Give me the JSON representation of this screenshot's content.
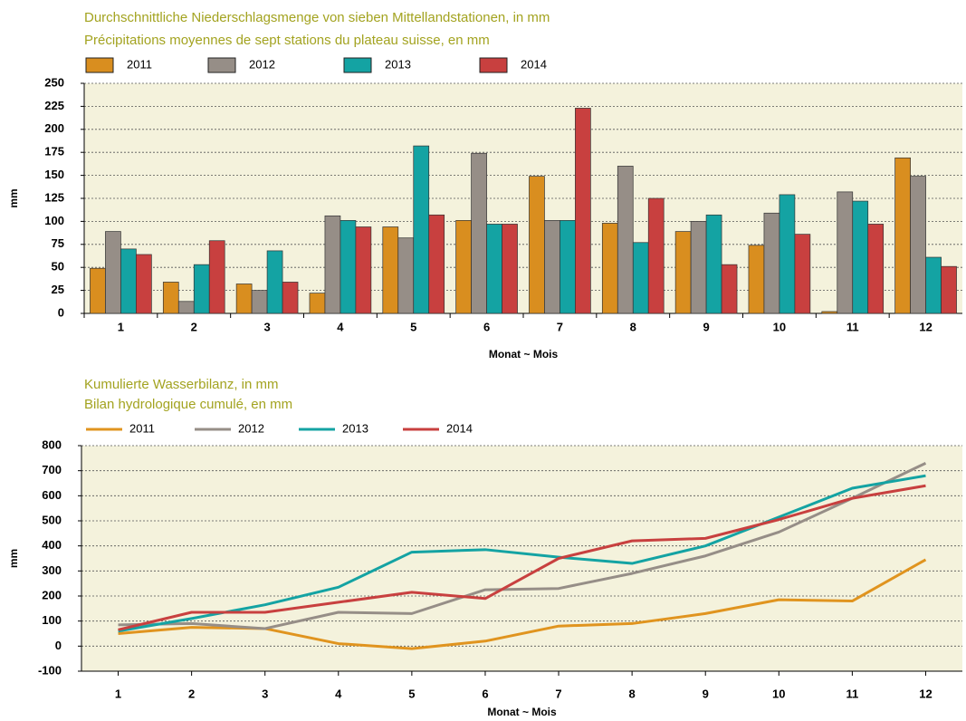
{
  "chart_data": [
    {
      "type": "bar",
      "title": "Durchschnittliche Niederschlagsmenge von sieben Mittellandstationen, in mm",
      "subtitle": "Précipitations moyennes de sept stations du plateau suisse, en mm",
      "categories": [
        "1",
        "2",
        "3",
        "4",
        "5",
        "6",
        "7",
        "8",
        "9",
        "10",
        "11",
        "12"
      ],
      "series": [
        {
          "name": "2011",
          "color": "#d98e1f",
          "values": [
            49,
            34,
            32,
            22,
            94,
            101,
            149,
            98,
            89,
            74,
            2,
            169
          ]
        },
        {
          "name": "2012",
          "color": "#968e87",
          "values": [
            89,
            13,
            25,
            106,
            82,
            174,
            101,
            160,
            100,
            109,
            132,
            149
          ]
        },
        {
          "name": "2013",
          "color": "#14a3a3",
          "values": [
            70,
            53,
            68,
            101,
            182,
            97,
            101,
            77,
            107,
            129,
            122,
            61
          ]
        },
        {
          "name": "2014",
          "color": "#c8403f",
          "values": [
            64,
            79,
            34,
            94,
            107,
            97,
            223,
            125,
            53,
            86,
            97,
            51
          ]
        }
      ],
      "ylim": [
        0,
        250
      ],
      "yticks": [
        0,
        25,
        50,
        75,
        100,
        125,
        150,
        175,
        200,
        225,
        250
      ],
      "ylabel": "mm",
      "xlabel": "Monat ~ Mois",
      "grid": true
    },
    {
      "type": "line",
      "title": "Kumulierte Wasserbilanz, in mm",
      "subtitle": "Bilan hydrologique cumulé, en mm",
      "categories": [
        "1",
        "2",
        "3",
        "4",
        "5",
        "6",
        "7",
        "8",
        "9",
        "10",
        "11",
        "12"
      ],
      "series": [
        {
          "name": "2011",
          "color": "#e0941f",
          "values": [
            50,
            75,
            70,
            10,
            -10,
            20,
            80,
            90,
            130,
            185,
            180,
            345
          ]
        },
        {
          "name": "2012",
          "color": "#968e87",
          "values": [
            85,
            90,
            70,
            135,
            130,
            225,
            230,
            290,
            360,
            455,
            590,
            730
          ]
        },
        {
          "name": "2013",
          "color": "#14a3a3",
          "values": [
            60,
            110,
            165,
            235,
            375,
            385,
            355,
            330,
            400,
            515,
            630,
            680
          ]
        },
        {
          "name": "2014",
          "color": "#c8403f",
          "values": [
            65,
            135,
            135,
            175,
            215,
            190,
            350,
            420,
            430,
            505,
            590,
            640
          ]
        }
      ],
      "ylim": [
        -100,
        800
      ],
      "yticks": [
        -100,
        0,
        100,
        200,
        300,
        400,
        500,
        600,
        700,
        800
      ],
      "ylabel": "mm",
      "xlabel": "Monat ~ Mois",
      "grid": true
    }
  ]
}
